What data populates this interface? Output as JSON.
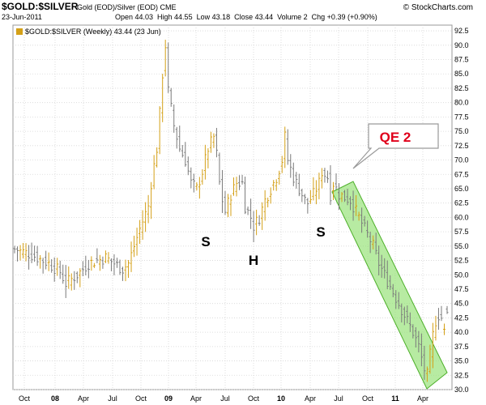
{
  "header": {
    "symbol": "$GOLD:$SILVER",
    "description": "Gold (EOD)/Silver (EOD)",
    "exchange": "CME",
    "date": "23-Jun-2011",
    "quote": "Open 44.03  High 44.55  Low 43.18  Close 43.44  Volume 2  Chg +0.39 (+0.90%)",
    "watermark": "© StockCharts.com"
  },
  "legend": {
    "text": "$GOLD:$SILVER (Weekly) 43.44 (23 Jun)"
  },
  "annotations": {
    "callout_label": "QE 2",
    "left_shoulder": "S",
    "head": "H",
    "right_shoulder": "S"
  },
  "colors": {
    "up_bar": "#d4a017",
    "down_bar": "#7a7a7a",
    "channel_fill": "#90e070",
    "channel_stroke": "#4caf28",
    "callout_text": "#e0001b",
    "grid": "#d6d6d6"
  },
  "chart_data": {
    "type": "ohlc",
    "title": "$GOLD:$SILVER (Weekly) 43.44 (23 Jun)",
    "ylim": [
      30,
      93.5
    ],
    "y_ticks": [
      "30.0",
      "32.5",
      "35.0",
      "37.5",
      "40.0",
      "42.5",
      "45.0",
      "47.5",
      "50.0",
      "52.5",
      "55.0",
      "57.5",
      "60.0",
      "62.5",
      "65.0",
      "67.5",
      "70.0",
      "72.5",
      "75.0",
      "77.5",
      "80.0",
      "82.5",
      "85.0",
      "87.5",
      "90.0",
      "92.5"
    ],
    "x_ticks": [
      "Oct",
      "08",
      "Apr",
      "Jul",
      "Oct",
      "09",
      "Apr",
      "Jul",
      "Oct",
      "10",
      "Apr",
      "Jul",
      "Oct",
      "11",
      "Apr"
    ],
    "grid": true,
    "close_path": [
      [
        0,
        54.5
      ],
      [
        6,
        53.5
      ],
      [
        12,
        52
      ],
      [
        16,
        50.5
      ],
      [
        18,
        48.5
      ],
      [
        22,
        50
      ],
      [
        26,
        52
      ],
      [
        32,
        53
      ],
      [
        38,
        51
      ],
      [
        40,
        52
      ],
      [
        44,
        58
      ],
      [
        47,
        62
      ],
      [
        48,
        66
      ],
      [
        50,
        72
      ],
      [
        51,
        78
      ],
      [
        52,
        85
      ],
      [
        53,
        90
      ],
      [
        54,
        82
      ],
      [
        56,
        76
      ],
      [
        58,
        72
      ],
      [
        60,
        70
      ],
      [
        62,
        66
      ],
      [
        64,
        65
      ],
      [
        66,
        68
      ],
      [
        68,
        72
      ],
      [
        70,
        74
      ],
      [
        71,
        71
      ],
      [
        72,
        66
      ],
      [
        73,
        63
      ],
      [
        74,
        61
      ],
      [
        76,
        64
      ],
      [
        78,
        66
      ],
      [
        80,
        66
      ],
      [
        81,
        62
      ],
      [
        83,
        60
      ],
      [
        84,
        58.5
      ],
      [
        86,
        60
      ],
      [
        88,
        63
      ],
      [
        90,
        65
      ],
      [
        92,
        67
      ],
      [
        94,
        70
      ],
      [
        95,
        74
      ],
      [
        96,
        70
      ],
      [
        98,
        67
      ],
      [
        100,
        65
      ],
      [
        102,
        63
      ],
      [
        103,
        62.5
      ],
      [
        105,
        64
      ],
      [
        107,
        66
      ],
      [
        108,
        68
      ],
      [
        110,
        67
      ],
      [
        111,
        64
      ],
      [
        112,
        66
      ],
      [
        114,
        64
      ],
      [
        116,
        63.5
      ],
      [
        118,
        63
      ],
      [
        120,
        61
      ],
      [
        122,
        59
      ],
      [
        124,
        57
      ],
      [
        126,
        55
      ],
      [
        128,
        52
      ],
      [
        130,
        50
      ],
      [
        132,
        48
      ],
      [
        134,
        46
      ],
      [
        136,
        44
      ],
      [
        138,
        42
      ],
      [
        140,
        40
      ],
      [
        142,
        37.5
      ],
      [
        143,
        35.5
      ],
      [
        144,
        33.5
      ],
      [
        145,
        32.5
      ],
      [
        146,
        36
      ],
      [
        147,
        39.5
      ],
      [
        148,
        42
      ],
      [
        149,
        43
      ],
      [
        150,
        42.5
      ],
      [
        151,
        43
      ],
      [
        152,
        43.4
      ]
    ],
    "last_weeks": [
      {
        "open": 40.5,
        "high": 41.5,
        "low": 39.5,
        "close": 40.5
      },
      {
        "open": 44.03,
        "high": 44.55,
        "low": 43.18,
        "close": 43.44
      }
    ]
  }
}
